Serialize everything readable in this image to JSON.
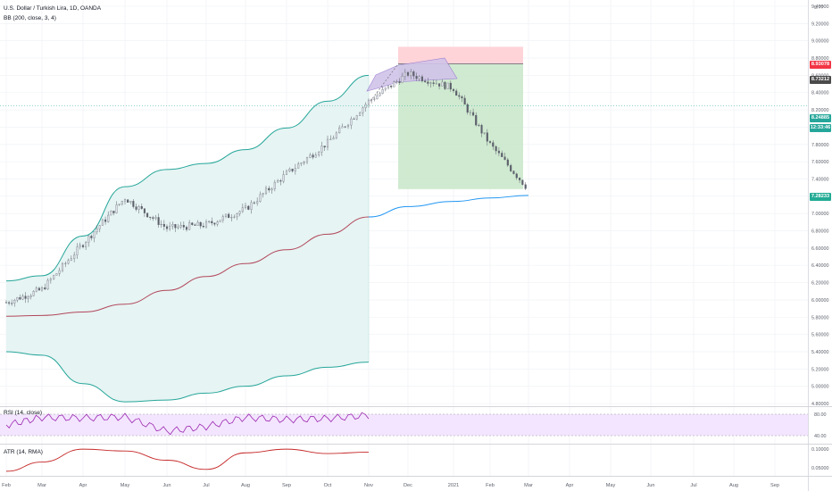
{
  "header": {
    "symbol_line": "U.S. Dollar / Turkish Lira, 1D, OANDA",
    "bb_label": "BB (200, close, 3, 4)",
    "rsi_label": "RSI (14, close)",
    "atr_label": "ATR (14, RMA)"
  },
  "price_axis": {
    "ticks": [
      "9.40000",
      "9.20000",
      "9.00000",
      "8.80000",
      "8.60000",
      "8.40000",
      "8.20000",
      "8.00000",
      "7.80000",
      "7.60000",
      "7.40000",
      "7.20000",
      "7.00000",
      "6.80000",
      "6.60000",
      "6.40000",
      "6.20000",
      "6.00000",
      "5.80000",
      "5.60000",
      "5.40000",
      "5.20000",
      "5.00000",
      "4.80000"
    ],
    "top_cut": "9.??"
  },
  "badges": {
    "stop": {
      "text": "8.93078",
      "color": "#f23645"
    },
    "entry": {
      "text": "8.73212",
      "color": "#4a4a4a"
    },
    "current": {
      "text": "8.24885",
      "color": "#26a69a"
    },
    "countdown": {
      "text": "12:33:46",
      "color": "#26a69a"
    },
    "target": {
      "text": "7.28233",
      "color": "#22ab94"
    }
  },
  "rsi_axis": {
    "ticks": [
      "80.00",
      "40.00"
    ]
  },
  "atr_axis": {
    "ticks": [
      "0.10000",
      "0.05000"
    ]
  },
  "time_axis": {
    "labels": [
      "Feb",
      "Mar",
      "Apr",
      "May",
      "Jun",
      "Jul",
      "Aug",
      "Sep",
      "Oct",
      "Nov",
      "Dec",
      "2021",
      "Feb",
      "Mar",
      "Apr",
      "May",
      "Jun",
      "Jul",
      "Aug",
      "Sep"
    ]
  },
  "colors": {
    "upper_band": "#26a69a",
    "lower_band": "#26a69a",
    "basis": "#b2475b",
    "band_fill": "#e6f4f3",
    "projection_basis": "#2196f3",
    "rsi_line": "#9c27b0",
    "rsi_fill": "#f3e5ff",
    "atr_line": "#c62828",
    "candle": "#787b86",
    "profit_zone": "#c8e6c9",
    "loss_zone": "#ffcdd2",
    "cloud": "#d1c4e9"
  },
  "chart_data": [
    {
      "type": "line",
      "title": "U.S. Dollar / Turkish Lira, 1D, OANDA",
      "xlabel": "",
      "ylabel": "",
      "ylim": [
        4.8,
        9.4
      ],
      "x_labels": [
        "Feb",
        "Mar",
        "Apr",
        "May",
        "Jun",
        "Jul",
        "Aug",
        "Sep",
        "Oct",
        "Nov",
        "Dec",
        "2021",
        "Feb",
        "Mar",
        "Apr",
        "May",
        "Jun",
        "Jul",
        "Aug",
        "Sep"
      ],
      "series": [
        {
          "name": "",
          "role": "price",
          "x": [
            "Feb",
            "Mar",
            "Apr",
            "May",
            "Jun",
            "Jul",
            "Aug",
            "Sep",
            "Oct",
            "Nov",
            "Dec",
            "2021",
            "Feb",
            "Mar"
          ],
          "values": [
            5.97,
            6.12,
            6.65,
            7.18,
            6.83,
            6.87,
            7.05,
            7.46,
            7.82,
            8.3,
            8.62,
            8.45,
            7.8,
            7.28
          ]
        },
        {
          "name": "",
          "role": "bb_upper",
          "x": [
            "Feb",
            "Mar",
            "Apr",
            "May",
            "Jun",
            "Jul",
            "Aug",
            "Sep",
            "Oct",
            "Nov"
          ],
          "values": [
            6.22,
            6.28,
            6.74,
            7.31,
            7.51,
            7.58,
            7.74,
            7.99,
            8.3,
            8.6
          ]
        },
        {
          "name": "",
          "role": "bb_basis",
          "x": [
            "Feb",
            "Mar",
            "Apr",
            "May",
            "Jun",
            "Jul",
            "Aug",
            "Sep",
            "Oct",
            "Nov",
            "Dec",
            "2021",
            "Feb",
            "Mar"
          ],
          "values": [
            5.81,
            5.82,
            5.86,
            5.95,
            6.11,
            6.27,
            6.42,
            6.58,
            6.76,
            6.96,
            7.08,
            7.14,
            7.18,
            7.21
          ]
        },
        {
          "name": "",
          "role": "bb_lower",
          "x": [
            "Feb",
            "Mar",
            "Apr",
            "May",
            "Jun",
            "Jul",
            "Aug",
            "Sep",
            "Oct",
            "Nov"
          ],
          "values": [
            5.4,
            5.36,
            5.03,
            4.82,
            4.84,
            4.92,
            5.0,
            5.12,
            5.22,
            5.28
          ]
        }
      ],
      "position": {
        "entry": 8.73212,
        "stop": 8.93078,
        "target": 7.28233,
        "current": 8.24885
      }
    },
    {
      "type": "line",
      "title": "RSI (14, close)",
      "ylim": [
        30,
        90
      ],
      "band": [
        40,
        80
      ],
      "series": [
        {
          "name": "",
          "x": [
            "Feb",
            "Mar",
            "Apr",
            "May",
            "Jun",
            "Jul",
            "Aug",
            "Sep",
            "Oct",
            "Nov"
          ],
          "values": [
            60,
            74,
            73,
            75,
            48,
            57,
            74,
            70,
            72,
            78
          ]
        }
      ]
    },
    {
      "type": "line",
      "title": "ATR (14, RMA)",
      "ylim": [
        0.03,
        0.11
      ],
      "series": [
        {
          "name": "",
          "x": [
            "Feb",
            "Mar",
            "Apr",
            "May",
            "Jun",
            "Jul",
            "Aug",
            "Sep",
            "Oct",
            "Nov"
          ],
          "values": [
            0.04,
            0.065,
            0.1,
            0.095,
            0.07,
            0.045,
            0.09,
            0.1,
            0.088,
            0.092
          ]
        }
      ]
    }
  ]
}
